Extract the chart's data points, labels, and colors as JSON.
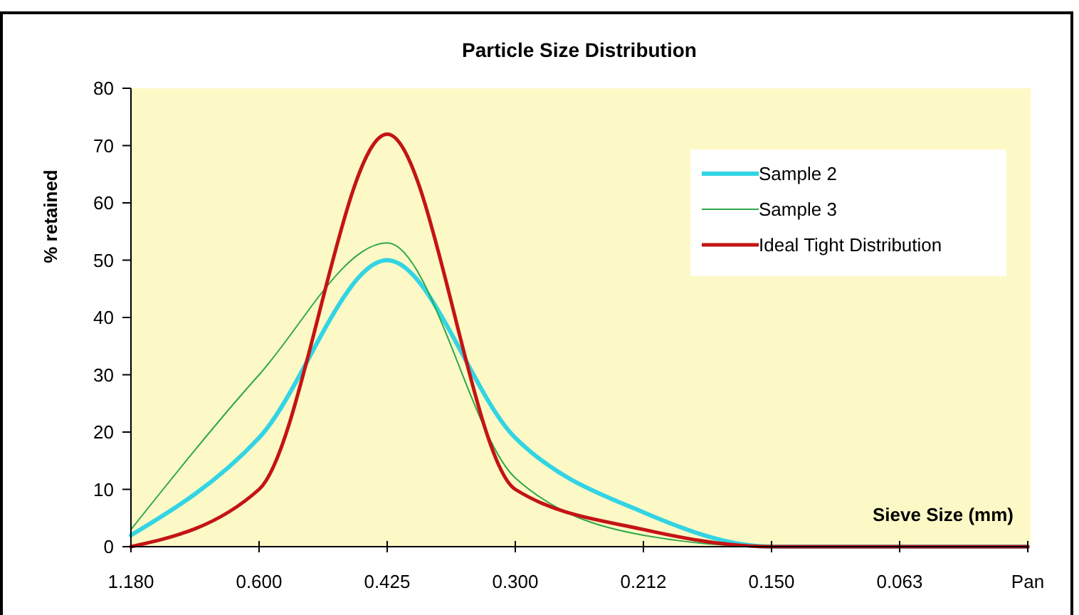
{
  "chart_data": {
    "type": "line",
    "title": "Particle Size Distribution",
    "xlabel": "Sieve Size (mm)",
    "ylabel": "% retained",
    "categories": [
      "1.180",
      "0.600",
      "0.425",
      "0.300",
      "0.212",
      "0.150",
      "0.063",
      "Pan"
    ],
    "series": [
      {
        "name": "Sample 2",
        "color": "#33d4e4",
        "values": [
          2,
          19,
          50,
          19,
          6,
          0,
          0,
          0
        ]
      },
      {
        "name": "Sample 3",
        "color": "#2ea84a",
        "values": [
          3,
          30,
          53,
          12,
          2,
          0,
          0,
          0
        ]
      },
      {
        "name": "Ideal Tight Distribution",
        "color": "#c41414",
        "values": [
          0,
          10,
          72,
          10,
          3,
          0,
          0,
          0
        ]
      }
    ],
    "ylim": [
      0,
      80
    ],
    "yticks": [
      0,
      10,
      20,
      30,
      40,
      50,
      60,
      70,
      80
    ],
    "grid": false,
    "legend": "top right",
    "line_style": "solid"
  }
}
